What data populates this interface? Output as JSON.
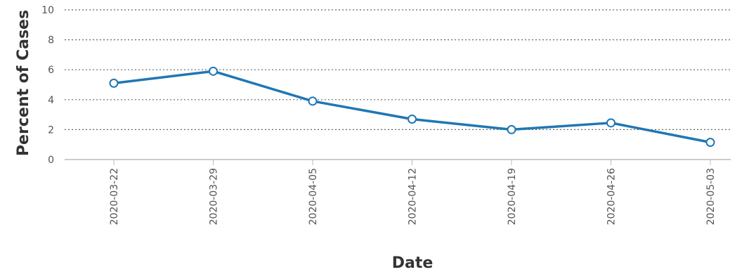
{
  "chart_data": {
    "type": "line",
    "title": "",
    "xlabel": "Date",
    "ylabel": "Percent of Cases",
    "ylim": [
      0,
      10
    ],
    "yticks": [
      0,
      2,
      4,
      6,
      8,
      10
    ],
    "grid": true,
    "categories": [
      "2020-03-22",
      "2020-03-29",
      "2020-04-05",
      "2020-04-12",
      "2020-04-19",
      "2020-04-26",
      "2020-05-03"
    ],
    "series": [
      {
        "values": [
          5.1,
          5.9,
          3.9,
          2.7,
          2.0,
          2.45,
          1.15
        ],
        "color": "#1f77b4"
      }
    ]
  }
}
